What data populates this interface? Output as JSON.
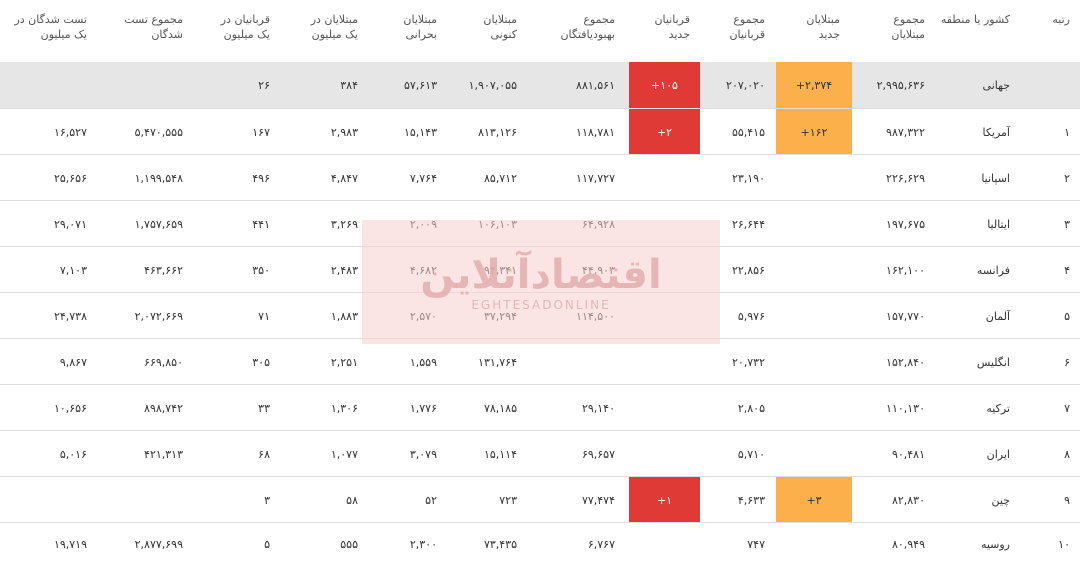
{
  "headers": {
    "rank": "رتبه",
    "country": "کشور یا منطقه",
    "total_cases": "مجموع\nمبتلایان",
    "new_cases": "مبتلایان\nجدید",
    "total_deaths": "مجموع\nقربانیان",
    "new_deaths": "قربانیان\nجدید",
    "total_recovered": "مجموع\nبهبودیافتگان",
    "active_cases": "مبتلایان\nکنونی",
    "serious": "مبتلایان\nبحرانی",
    "cases_per_million": "مبتلایان در\nیک میلیون",
    "deaths_per_million": "قربانیان در\nیک میلیون",
    "total_tests": "مجموع تست\nشدگان",
    "tests_per_million": "تست شدگان در\nیک میلیون"
  },
  "rows": [
    {
      "rank": "",
      "country": "جهانی",
      "total_cases": "۲,۹۹۵,۶۳۶",
      "new_cases": "+۲,۳۷۴",
      "total_deaths": "۲۰۷,۰۲۰",
      "new_deaths": "+۱۰۵",
      "total_recovered": "۸۸۱,۵۶۱",
      "active_cases": "۱,۹۰۷,۰۵۵",
      "serious": "۵۷,۶۱۳",
      "cases_per_million": "۳۸۴",
      "deaths_per_million": "۲۶",
      "total_tests": "",
      "tests_per_million": ""
    },
    {
      "rank": "۱",
      "country": "آمریکا",
      "total_cases": "۹۸۷,۳۲۲",
      "new_cases": "+۱۶۲",
      "total_deaths": "۵۵,۴۱۵",
      "new_deaths": "+۲",
      "total_recovered": "۱۱۸,۷۸۱",
      "active_cases": "۸۱۳,۱۲۶",
      "serious": "۱۵,۱۴۳",
      "cases_per_million": "۲,۹۸۳",
      "deaths_per_million": "۱۶۷",
      "total_tests": "۵,۴۷۰,۵۵۵",
      "tests_per_million": "۱۶,۵۲۷"
    },
    {
      "rank": "۲",
      "country": "اسپانیا",
      "total_cases": "۲۲۶,۶۲۹",
      "new_cases": "",
      "total_deaths": "۲۳,۱۹۰",
      "new_deaths": "",
      "total_recovered": "۱۱۷,۷۲۷",
      "active_cases": "۸۵,۷۱۲",
      "serious": "۷,۷۶۴",
      "cases_per_million": "۴,۸۴۷",
      "deaths_per_million": "۴۹۶",
      "total_tests": "۱,۱۹۹,۵۴۸",
      "tests_per_million": "۲۵,۶۵۶"
    },
    {
      "rank": "۳",
      "country": "ایتالیا",
      "total_cases": "۱۹۷,۶۷۵",
      "new_cases": "",
      "total_deaths": "۲۶,۶۴۴",
      "new_deaths": "",
      "total_recovered": "۶۴,۹۲۸",
      "active_cases": "۱۰۶,۱۰۳",
      "serious": "۲,۰۰۹",
      "cases_per_million": "۳,۲۶۹",
      "deaths_per_million": "۴۴۱",
      "total_tests": "۱,۷۵۷,۶۵۹",
      "tests_per_million": "۲۹,۰۷۱"
    },
    {
      "rank": "۴",
      "country": "فرانسه",
      "total_cases": "۱۶۲,۱۰۰",
      "new_cases": "",
      "total_deaths": "۲۲,۸۵۶",
      "new_deaths": "",
      "total_recovered": "۴۴,۹۰۳",
      "active_cases": "۹۴,۳۴۱",
      "serious": "۴,۶۸۲",
      "cases_per_million": "۲,۴۸۳",
      "deaths_per_million": "۳۵۰",
      "total_tests": "۴۶۳,۶۶۲",
      "tests_per_million": "۷,۱۰۳"
    },
    {
      "rank": "۵",
      "country": "آلمان",
      "total_cases": "۱۵۷,۷۷۰",
      "new_cases": "",
      "total_deaths": "۵,۹۷۶",
      "new_deaths": "",
      "total_recovered": "۱۱۴,۵۰۰",
      "active_cases": "۳۷,۲۹۴",
      "serious": "۲,۵۷۰",
      "cases_per_million": "۱,۸۸۳",
      "deaths_per_million": "۷۱",
      "total_tests": "۲,۰۷۲,۶۶۹",
      "tests_per_million": "۲۴,۷۳۸"
    },
    {
      "rank": "۶",
      "country": "انگلیس",
      "total_cases": "۱۵۲,۸۴۰",
      "new_cases": "",
      "total_deaths": "۲۰,۷۳۲",
      "new_deaths": "",
      "total_recovered": "",
      "active_cases": "۱۳۱,۷۶۴",
      "serious": "۱,۵۵۹",
      "cases_per_million": "۲,۲۵۱",
      "deaths_per_million": "۳۰۵",
      "total_tests": "۶۶۹,۸۵۰",
      "tests_per_million": "۹,۸۶۷"
    },
    {
      "rank": "۷",
      "country": "ترکیه",
      "total_cases": "۱۱۰,۱۳۰",
      "new_cases": "",
      "total_deaths": "۲,۸۰۵",
      "new_deaths": "",
      "total_recovered": "۲۹,۱۴۰",
      "active_cases": "۷۸,۱۸۵",
      "serious": "۱,۷۷۶",
      "cases_per_million": "۱,۳۰۶",
      "deaths_per_million": "۳۳",
      "total_tests": "۸۹۸,۷۴۲",
      "tests_per_million": "۱۰,۶۵۶"
    },
    {
      "rank": "۸",
      "country": "ایران",
      "total_cases": "۹۰,۴۸۱",
      "new_cases": "",
      "total_deaths": "۵,۷۱۰",
      "new_deaths": "",
      "total_recovered": "۶۹,۶۵۷",
      "active_cases": "۱۵,۱۱۴",
      "serious": "۳,۰۷۹",
      "cases_per_million": "۱,۰۷۷",
      "deaths_per_million": "۶۸",
      "total_tests": "۴۲۱,۳۱۳",
      "tests_per_million": "۵,۰۱۶"
    },
    {
      "rank": "۹",
      "country": "چین",
      "total_cases": "۸۲,۸۳۰",
      "new_cases": "+۳",
      "total_deaths": "۴,۶۳۳",
      "new_deaths": "+۱",
      "total_recovered": "۷۷,۴۷۴",
      "active_cases": "۷۲۳",
      "serious": "۵۲",
      "cases_per_million": "۵۸",
      "deaths_per_million": "۳",
      "total_tests": "",
      "tests_per_million": ""
    },
    {
      "rank": "۱۰",
      "country": "روسیه",
      "total_cases": "۸۰,۹۴۹",
      "new_cases": "",
      "total_deaths": "۷۴۷",
      "new_deaths": "",
      "total_recovered": "۶,۷۶۷",
      "active_cases": "۷۳,۴۳۵",
      "serious": "۲,۳۰۰",
      "cases_per_million": "۵۵۵",
      "deaths_per_million": "۵",
      "total_tests": "۲,۸۷۷,۶۹۹",
      "tests_per_million": "۱۹,۷۱۹"
    }
  ],
  "colors": {
    "new_cases_badge": "#fbb04b",
    "new_deaths_badge": "#e03a37",
    "world_row_bg": "#e6e6e6"
  },
  "watermark": {
    "main": "اقتصادآنلاین",
    "sub": "EGHTESADONLINE"
  }
}
